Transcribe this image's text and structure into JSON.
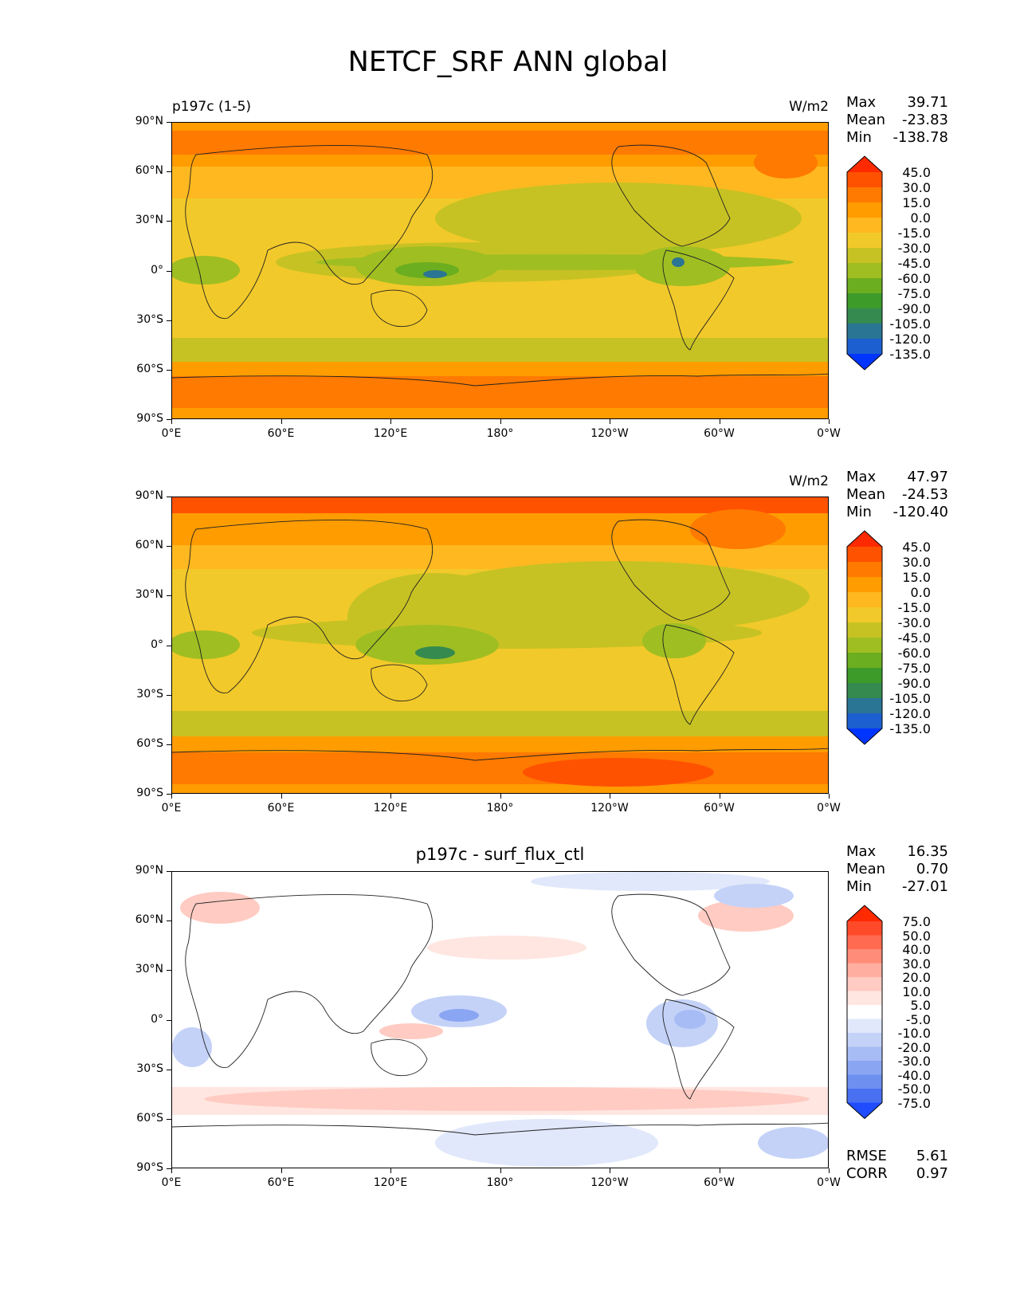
{
  "figure_title": "NETCF_SRF ANN global",
  "x_ticks": [
    "0°E",
    "60°E",
    "120°E",
    "180°",
    "120°W",
    "60°W",
    "0°W"
  ],
  "y_ticks": [
    "90°N",
    "60°N",
    "30°N",
    "0°",
    "30°S",
    "60°S",
    "90°S"
  ],
  "panels": [
    {
      "left_title": "p197c (1-5)",
      "center_title": "",
      "units": "W/m2",
      "stats": {
        "max_label": "Max",
        "max": "39.71",
        "mean_label": "Mean",
        "mean": "-23.83",
        "min_label": "Min",
        "min": "-138.78"
      },
      "colorbar": {
        "levels": [
          "45.0",
          "30.0",
          "15.0",
          "0.0",
          "-15.0",
          "-30.0",
          "-45.0",
          "-60.0",
          "-75.0",
          "-90.0",
          "-105.0",
          "-120.0",
          "-135.0"
        ],
        "colors": [
          "#ff2a00",
          "#ff5200",
          "#ff7a00",
          "#ff9c00",
          "#ffb81f",
          "#f2c92a",
          "#c7c223",
          "#9fbe22",
          "#6bae1f",
          "#3d9b2a",
          "#358a4f",
          "#2a7494",
          "#1c5fd0",
          "#0035ff"
        ]
      }
    },
    {
      "left_title": "",
      "center_title": "",
      "units": "W/m2",
      "stats": {
        "max_label": "Max",
        "max": "47.97",
        "mean_label": "Mean",
        "mean": "-24.53",
        "min_label": "Min",
        "min": "-120.40"
      },
      "colorbar": {
        "levels": [
          "45.0",
          "30.0",
          "15.0",
          "0.0",
          "-15.0",
          "-30.0",
          "-45.0",
          "-60.0",
          "-75.0",
          "-90.0",
          "-105.0",
          "-120.0",
          "-135.0"
        ],
        "colors": [
          "#ff2a00",
          "#ff5200",
          "#ff7a00",
          "#ff9c00",
          "#ffb81f",
          "#f2c92a",
          "#c7c223",
          "#9fbe22",
          "#6bae1f",
          "#3d9b2a",
          "#358a4f",
          "#2a7494",
          "#1c5fd0",
          "#0035ff"
        ]
      }
    },
    {
      "left_title": "",
      "center_title": "p197c - surf_flux_ctl",
      "units": "",
      "stats": {
        "max_label": "Max",
        "max": "16.35",
        "mean_label": "Mean",
        "mean": "0.70",
        "min_label": "Min",
        "min": "-27.01"
      },
      "colorbar": {
        "levels": [
          "75.0",
          "50.0",
          "40.0",
          "30.0",
          "20.0",
          "10.0",
          "5.0",
          "-5.0",
          "-10.0",
          "-20.0",
          "-30.0",
          "-40.0",
          "-50.0",
          "-75.0"
        ],
        "colors": [
          "#ff2a00",
          "#ff4a2a",
          "#ff6a50",
          "#ff8c78",
          "#ffaea0",
          "#ffcbc2",
          "#ffe6e1",
          "#ffffff",
          "#e1e8fb",
          "#c4d2f8",
          "#a7bcf5",
          "#8aa6f2",
          "#6d8ff0",
          "#4a70f2",
          "#1f4cff"
        ]
      },
      "scores": {
        "rmse_label": "RMSE",
        "rmse": "5.61",
        "corr_label": "CORR",
        "corr": "0.97"
      }
    }
  ]
}
